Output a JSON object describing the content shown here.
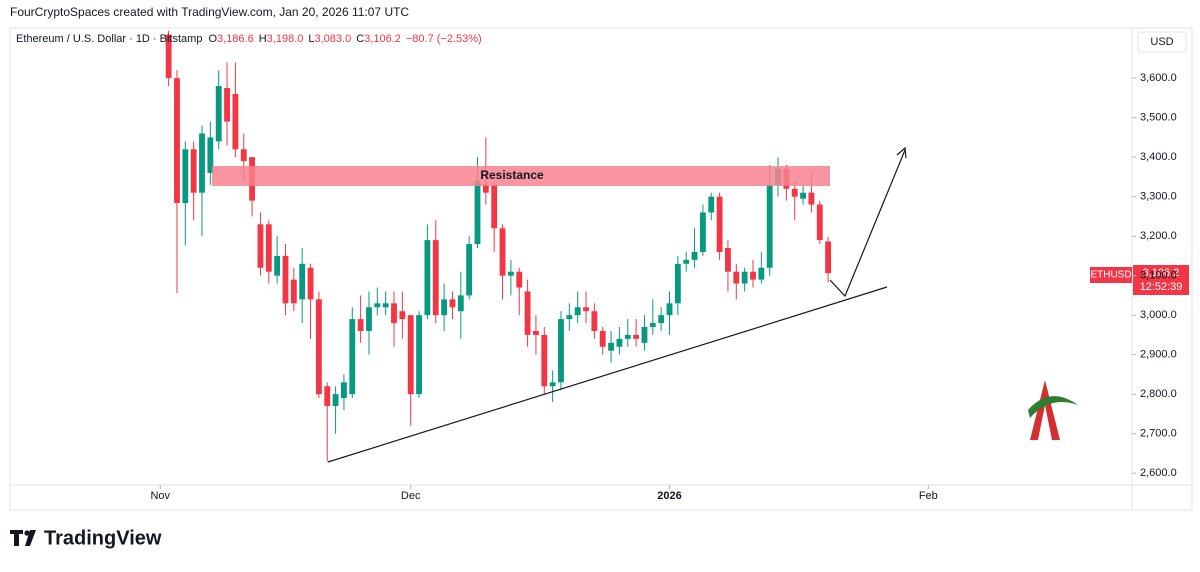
{
  "chart_data": {
    "type": "candlestick",
    "credit": "FourCryptoSpaces created with TradingView.com, Jan 20, 2026 11:07 UTC",
    "title": "Ethereum / U.S. Dollar · 1D · Bitstamp",
    "ohlc_header": [
      {
        "key": "O",
        "text": "3,186.6"
      },
      {
        "key": "H",
        "text": "3,198.0"
      },
      {
        "key": "L",
        "text": "3,083.0"
      },
      {
        "key": "C",
        "text": "3,106.2"
      }
    ],
    "change": "−80.7 (−2.53%)",
    "currency": "USD",
    "price_tag": {
      "symbol": "ETHUSD",
      "price": "3,106.2",
      "countdown": "12:52:39"
    },
    "annotation": "Resistance",
    "branding": "TradingView",
    "up_color": "#089981",
    "down_color": "#f23645",
    "open": [
      3710,
      3600,
      3284,
      3420,
      3310,
      3360,
      3440,
      3575,
      3560,
      3420,
      3400,
      3230,
      3230,
      3100,
      3150,
      3090,
      3040,
      3120,
      3040,
      2820,
      2770,
      2790,
      2800,
      2990,
      2960,
      3020,
      3020,
      3030,
      3010,
      3000,
      2800,
      3000,
      3190,
      3000,
      3040,
      3010,
      3050,
      3180,
      3330,
      3330,
      3220,
      3100,
      3110,
      3060,
      2960,
      2950,
      2820,
      2830,
      2990,
      3000,
      3020,
      3010,
      2960,
      2910,
      2920,
      2940,
      2950,
      2930,
      2970,
      2980,
      3000,
      3030,
      3130,
      3140,
      3160,
      3260,
      3300,
      3170,
      3110,
      3080,
      3110,
      3090,
      3120,
      3330,
      3370,
      3320,
      3295,
      3310,
      3280,
      3186.6
    ],
    "high": [
      3720,
      3620,
      3440,
      3440,
      3480,
      3490,
      3620,
      3640,
      3640,
      3460,
      3400,
      3260,
      3240,
      3200,
      3180,
      3120,
      3170,
      3130,
      3060,
      2830,
      2820,
      2850,
      3020,
      3050,
      3060,
      3070,
      3060,
      3060,
      3060,
      3000,
      3010,
      3230,
      3240,
      3080,
      3060,
      3110,
      3200,
      3400,
      3450,
      3340,
      3230,
      3140,
      3120,
      3090,
      3000,
      2970,
      2860,
      3010,
      3030,
      3060,
      3060,
      3030,
      2970,
      2960,
      2970,
      2990,
      2990,
      3000,
      3040,
      3020,
      3060,
      3150,
      3160,
      3220,
      3280,
      3310,
      3310,
      3190,
      3130,
      3120,
      3140,
      3160,
      3380,
      3400,
      3380,
      3340,
      3330,
      3360,
      3290,
      3198
    ],
    "low": [
      3580,
      3056,
      3177,
      3240,
      3200,
      3330,
      3420,
      3430,
      3400,
      3340,
      3250,
      3100,
      3080,
      3080,
      3000,
      3010,
      2980,
      2940,
      2790,
      2630,
      2700,
      2760,
      2790,
      2930,
      2900,
      3000,
      3000,
      2920,
      2940,
      2720,
      2790,
      2990,
      2980,
      2960,
      2990,
      2940,
      3040,
      3170,
      3280,
      3160,
      3040,
      3050,
      3000,
      2920,
      2900,
      2800,
      2780,
      2810,
      2960,
      2980,
      2980,
      2940,
      2900,
      2880,
      2900,
      2920,
      2920,
      2910,
      2950,
      2960,
      2950,
      3000,
      3110,
      3120,
      3150,
      3240,
      3140,
      3060,
      3040,
      3060,
      3070,
      3080,
      3100,
      3300,
      3290,
      3240,
      3280,
      3260,
      3180,
      3083
    ],
    "close": [
      3600,
      3284,
      3420,
      3310,
      3460,
      3450,
      3580,
      3490,
      3420,
      3390,
      3290,
      3120,
      3110,
      3150,
      3030,
      3030,
      3130,
      3040,
      2800,
      2770,
      2800,
      2830,
      2990,
      2960,
      3020,
      3030,
      3030,
      2980,
      2990,
      2800,
      3000,
      3190,
      3000,
      3040,
      3020,
      3050,
      3180,
      3340,
      3310,
      3220,
      3100,
      3110,
      3070,
      2950,
      2950,
      2820,
      2830,
      2990,
      3000,
      3020,
      3010,
      2960,
      2920,
      2930,
      2940,
      2950,
      2940,
      2970,
      2980,
      3000,
      3030,
      3130,
      3140,
      3160,
      3260,
      3300,
      3160,
      3110,
      3080,
      3110,
      3090,
      3120,
      3330,
      3370,
      3320,
      3300,
      3310,
      3280,
      3190,
      3106.2
    ],
    "xlim": [
      -19,
      115.4
    ],
    "xticks": [
      {
        "value": -1,
        "label": "Nov"
      },
      {
        "value": 29,
        "label": "Dec"
      },
      {
        "value": 60,
        "label": "2026"
      },
      {
        "value": 91,
        "label": "Feb"
      }
    ],
    "ylim": [
      2570,
      3727
    ],
    "yticks": [
      {
        "value": 2600,
        "label": "2,600.0"
      },
      {
        "value": 2700,
        "label": "2,700.0"
      },
      {
        "value": 2800,
        "label": "2,800.0"
      },
      {
        "value": 2900,
        "label": "2,900.0"
      },
      {
        "value": 3000,
        "label": "3,000.0"
      },
      {
        "value": 3100,
        "label": "3,100.0"
      },
      {
        "value": 3200,
        "label": "3,200.0"
      },
      {
        "value": 3300,
        "label": "3,300.0"
      },
      {
        "value": 3400,
        "label": "3,400.0"
      },
      {
        "value": 3500,
        "label": "3,500.0"
      },
      {
        "value": 3600,
        "label": "3,600.0"
      }
    ]
  }
}
